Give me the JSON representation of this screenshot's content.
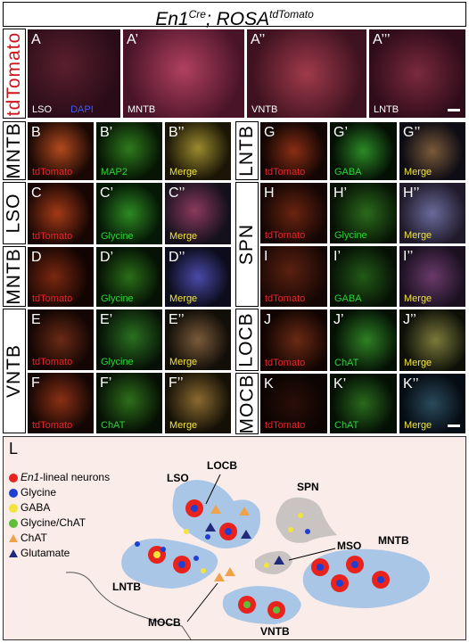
{
  "figure_title": {
    "gene": "En1",
    "gene_sup": "Cre",
    "sep": "; ",
    "reporter": "ROSA",
    "reporter_sup": "tdTomato"
  },
  "row_labels": {
    "top": "tdTomato",
    "b": "MNTB",
    "c": "LSO",
    "d": "MNTB",
    "ef": "VNTB",
    "g": "LNTB",
    "hi": "SPN",
    "j": "LOCB",
    "k": "MOCB"
  },
  "top_panels": [
    {
      "label": "A",
      "caption": "LSO",
      "caption2": "DAPI"
    },
    {
      "label": "A’",
      "caption": "MNTB"
    },
    {
      "label": "A’’",
      "caption": "VNTB"
    },
    {
      "label": "A’’’",
      "caption": "LNTB"
    }
  ],
  "left_rows": [
    {
      "panels": [
        {
          "label": "B",
          "caption": "tdTomato"
        },
        {
          "label": "B’",
          "caption": "MAP2"
        },
        {
          "label": "B’’",
          "caption": "Merge"
        }
      ]
    },
    {
      "panels": [
        {
          "label": "C",
          "caption": "tdTomato"
        },
        {
          "label": "C’",
          "caption": "Glycine"
        },
        {
          "label": "C’’",
          "caption": "Merge"
        }
      ]
    },
    {
      "panels": [
        {
          "label": "D",
          "caption": "tdTomato"
        },
        {
          "label": "D’",
          "caption": "Glycine"
        },
        {
          "label": "D’’",
          "caption": "Merge"
        }
      ]
    },
    {
      "panels": [
        {
          "label": "E",
          "caption": "tdTomato"
        },
        {
          "label": "E’",
          "caption": "Glycine"
        },
        {
          "label": "E’’",
          "caption": "Merge"
        }
      ]
    },
    {
      "panels": [
        {
          "label": "F",
          "caption": "tdTomato"
        },
        {
          "label": "F’",
          "caption": "ChAT"
        },
        {
          "label": "F’’",
          "caption": "Merge"
        }
      ]
    }
  ],
  "right_rows": [
    {
      "panels": [
        {
          "label": "G",
          "caption": "tdTomato"
        },
        {
          "label": "G’",
          "caption": "GABA"
        },
        {
          "label": "G’’",
          "caption": "Merge"
        }
      ]
    },
    {
      "panels": [
        {
          "label": "H",
          "caption": "tdTomato"
        },
        {
          "label": "H’",
          "caption": "Glycine"
        },
        {
          "label": "H’’",
          "caption": "Merge"
        }
      ]
    },
    {
      "panels": [
        {
          "label": "I",
          "caption": "tdTomato"
        },
        {
          "label": "I’",
          "caption": "GABA"
        },
        {
          "label": "I’’",
          "caption": "Merge"
        }
      ]
    },
    {
      "panels": [
        {
          "label": "J",
          "caption": "tdTomato"
        },
        {
          "label": "J’",
          "caption": "ChAT"
        },
        {
          "label": "J’’",
          "caption": "Merge"
        }
      ]
    },
    {
      "panels": [
        {
          "label": "K",
          "caption": "tdTomato"
        },
        {
          "label": "K’",
          "caption": "ChAT"
        },
        {
          "label": "K’’",
          "caption": "Merge"
        }
      ]
    }
  ],
  "schematic": {
    "label": "L",
    "legend": [
      {
        "gene": "En1",
        "text": "-lineal neurons",
        "color": "#e8231d"
      },
      {
        "text": "Glycine",
        "color": "#1f3fd1"
      },
      {
        "text": "GABA",
        "color": "#f2e43a"
      },
      {
        "text": "Glycine/ChAT",
        "color": "#5fbf3a"
      },
      {
        "text": "ChAT",
        "color": "#f0a24a"
      },
      {
        "text": "Glutamate",
        "color": "#1f2a7a"
      }
    ],
    "regions": {
      "lso": "LSO",
      "locb": "LOCB",
      "spn": "SPN",
      "mso": "MSO",
      "lntb": "LNTB",
      "mntb": "MNTB",
      "mocb": "MOCB",
      "vntb": "VNTB"
    }
  }
}
